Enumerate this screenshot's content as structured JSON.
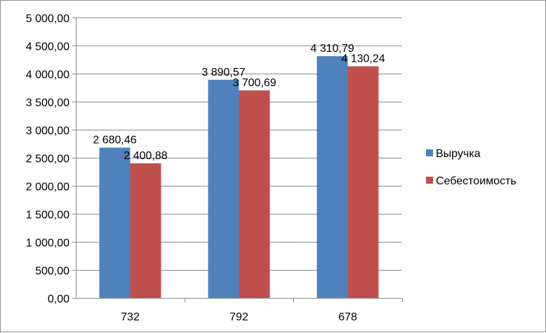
{
  "chart_data": {
    "type": "bar",
    "categories": [
      "732",
      "792",
      "678"
    ],
    "series": [
      {
        "name": "Выручка",
        "values": [
          2680.46,
          3890.57,
          4310.79
        ],
        "labels": [
          "2 680,46",
          "3 890,57",
          "4 310,79"
        ],
        "color": "#4f81bd"
      },
      {
        "name": "Себестоимость",
        "values": [
          2400.88,
          3700.69,
          4130.24
        ],
        "labels": [
          "2 400,88",
          "3 700,69",
          "4 130,24"
        ],
        "color": "#c0504d"
      }
    ],
    "ylim": [
      0,
      5000
    ],
    "yticks": [
      {
        "value": 0,
        "label": "0,00"
      },
      {
        "value": 500,
        "label": "500,00"
      },
      {
        "value": 1000,
        "label": "1 000,00"
      },
      {
        "value": 1500,
        "label": "1 500,00"
      },
      {
        "value": 2000,
        "label": "2 000,00"
      },
      {
        "value": 2500,
        "label": "2 500,00"
      },
      {
        "value": 3000,
        "label": "3 000,00"
      },
      {
        "value": 3500,
        "label": "3 500,00"
      },
      {
        "value": 4000,
        "label": "4 000,00"
      },
      {
        "value": 4500,
        "label": "4 500,00"
      },
      {
        "value": 5000,
        "label": "5 000,00"
      }
    ],
    "grid": true,
    "legend_position": "right"
  }
}
